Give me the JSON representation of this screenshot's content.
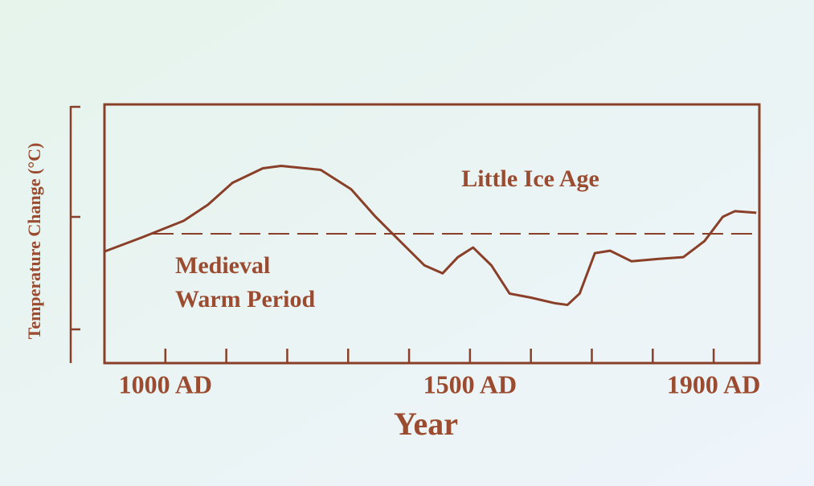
{
  "chart_data": {
    "type": "line",
    "xlabel": "Year",
    "ylabel": "Temperature Change (°C)",
    "annotations": [
      "Little Ice Age",
      "Medieval",
      "Warm Period"
    ],
    "x": [
      900,
      960,
      1030,
      1070,
      1110,
      1160,
      1190,
      1255,
      1305,
      1345,
      1385,
      1425,
      1455,
      1480,
      1505,
      1535,
      1565,
      1600,
      1640,
      1660,
      1680,
      1705,
      1730,
      1765,
      1810,
      1850,
      1885,
      1915,
      1935,
      1970
    ],
    "series": [
      {
        "color": "#8a3f28",
        "values": [
          -0.22,
          -0.05,
          0.16,
          0.36,
          0.63,
          0.81,
          0.84,
          0.79,
          0.55,
          0.21,
          -0.09,
          -0.39,
          -0.49,
          -0.29,
          -0.17,
          -0.39,
          -0.74,
          -0.79,
          -0.86,
          -0.88,
          -0.74,
          -0.24,
          -0.21,
          -0.34,
          -0.31,
          -0.29,
          -0.09,
          0.21,
          0.28,
          0.26
        ]
      }
    ],
    "reference": 0,
    "xlim": [
      900,
      1975
    ],
    "ylim": [
      -1.6,
      1.6
    ],
    "xticks": [
      {
        "value": 1000,
        "label": "1000 AD"
      },
      {
        "value": 1500,
        "label": "1500 AD"
      },
      {
        "value": 1900,
        "label": "1900 AD"
      }
    ],
    "minor_xticks": [
      1000,
      1100,
      1200,
      1300,
      1400,
      1500,
      1600,
      1700,
      1800,
      1900
    ]
  }
}
